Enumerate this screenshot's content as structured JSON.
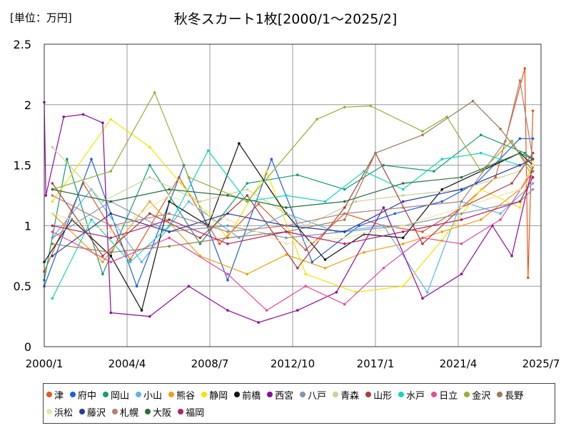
{
  "header": {
    "unit_label": "[単位：万円]",
    "title": "秋冬スカート1枚[2000/1～2025/2]"
  },
  "chart_data": {
    "type": "line",
    "title": "秋冬スカート1枚[2000/1～2025/2]",
    "ylabel": "[単位：万円]",
    "xlabel": "",
    "ylim": [
      0,
      2.5
    ],
    "yticks": [
      "0",
      "0.5",
      "1",
      "1.5",
      "2",
      "2.5"
    ],
    "xticks": [
      "2000/1",
      "2004/4",
      "2008/7",
      "2012/10",
      "2017/1",
      "2021/4",
      "2025/7"
    ],
    "xlim": [
      "2000-01",
      "2025-07"
    ],
    "grid": true,
    "legend_position": "bottom",
    "series": [
      {
        "name": "津",
        "color": "#e8561a",
        "pts": [
          [
            "2000-01",
            0.62
          ],
          [
            "2002-01",
            1.35
          ],
          [
            "2004-06",
            0.72
          ],
          [
            "2006-12",
            1.4
          ],
          [
            "2009-01",
            0.85
          ],
          [
            "2011-01",
            1.18
          ],
          [
            "2013-06",
            0.8
          ],
          [
            "2015-06",
            1.1
          ],
          [
            "2017-06",
            1.0
          ],
          [
            "2019-06",
            0.95
          ],
          [
            "2021-06",
            1.15
          ],
          [
            "2023-03",
            1.4
          ],
          [
            "2024-09",
            2.3
          ],
          [
            "2024-11",
            0.57
          ],
          [
            "2025-02",
            1.95
          ]
        ]
      },
      {
        "name": "府中",
        "color": "#1f5fdc",
        "pts": [
          [
            "2000-01",
            0.5
          ],
          [
            "2002-06",
            1.55
          ],
          [
            "2004-10",
            0.5
          ],
          [
            "2007-03",
            1.5
          ],
          [
            "2009-06",
            0.55
          ],
          [
            "2011-09",
            1.55
          ],
          [
            "2013-10",
            0.7
          ],
          [
            "2016-03",
            1.0
          ],
          [
            "2018-01",
            1.1
          ],
          [
            "2020-06",
            1.2
          ],
          [
            "2022-03",
            1.35
          ],
          [
            "2024-06",
            1.72
          ],
          [
            "2025-02",
            1.72
          ]
        ]
      },
      {
        "name": "岡山",
        "color": "#179c6d",
        "pts": [
          [
            "2000-01",
            0.55
          ],
          [
            "2001-03",
            1.55
          ],
          [
            "2003-01",
            0.6
          ],
          [
            "2005-06",
            1.5
          ],
          [
            "2008-01",
            0.85
          ],
          [
            "2010-06",
            1.35
          ],
          [
            "2013-01",
            1.42
          ],
          [
            "2015-06",
            1.3
          ],
          [
            "2017-06",
            1.5
          ],
          [
            "2020-01",
            1.45
          ],
          [
            "2022-06",
            1.75
          ],
          [
            "2024-09",
            1.6
          ],
          [
            "2025-02",
            1.55
          ]
        ]
      },
      {
        "name": "小山",
        "color": "#5cb4f0",
        "pts": [
          [
            "2000-06",
            0.9
          ],
          [
            "2002-06",
            1.3
          ],
          [
            "2005-01",
            0.7
          ],
          [
            "2007-06",
            1.2
          ],
          [
            "2010-01",
            0.9
          ],
          [
            "2012-06",
            1.1
          ],
          [
            "2015-01",
            0.95
          ],
          [
            "2017-06",
            1.0
          ],
          [
            "2019-09",
            0.45
          ],
          [
            "2021-06",
            1.2
          ],
          [
            "2023-06",
            1.1
          ],
          [
            "2025-02",
            1.35
          ]
        ]
      },
      {
        "name": "熊谷",
        "color": "#f0a010",
        "pts": [
          [
            "2000-06",
            1.1
          ],
          [
            "2003-01",
            0.7
          ],
          [
            "2005-06",
            1.2
          ],
          [
            "2008-01",
            0.75
          ],
          [
            "2010-06",
            0.6
          ],
          [
            "2012-06",
            0.76
          ],
          [
            "2014-06",
            0.65
          ],
          [
            "2016-06",
            0.78
          ],
          [
            "2018-06",
            0.85
          ],
          [
            "2020-06",
            0.95
          ],
          [
            "2022-06",
            1.05
          ],
          [
            "2024-06",
            1.3
          ],
          [
            "2025-02",
            1.48
          ]
        ]
      },
      {
        "name": "静岡",
        "color": "#f5e400",
        "pts": [
          [
            "2000-06",
            1.2
          ],
          [
            "2003-06",
            1.88
          ],
          [
            "2005-06",
            1.65
          ],
          [
            "2007-01",
            1.35
          ],
          [
            "2009-06",
            0.9
          ],
          [
            "2011-06",
            1.45
          ],
          [
            "2013-06",
            0.6
          ],
          [
            "2016-01",
            0.45
          ],
          [
            "2018-06",
            0.5
          ],
          [
            "2020-06",
            0.88
          ],
          [
            "2022-06",
            1.3
          ],
          [
            "2024-06",
            1.15
          ],
          [
            "2025-02",
            1.55
          ]
        ]
      },
      {
        "name": "前橋",
        "color": "#111111",
        "pts": [
          [
            "2000-01",
            0.7
          ],
          [
            "2001-06",
            1.05
          ],
          [
            "2003-06",
            0.75
          ],
          [
            "2005-01",
            0.3
          ],
          [
            "2006-06",
            1.2
          ],
          [
            "2008-06",
            1.0
          ],
          [
            "2010-01",
            1.68
          ],
          [
            "2012-06",
            1.1
          ],
          [
            "2014-06",
            0.72
          ],
          [
            "2016-06",
            0.93
          ],
          [
            "2018-06",
            0.9
          ],
          [
            "2020-06",
            1.3
          ],
          [
            "2022-06",
            1.45
          ],
          [
            "2024-06",
            1.6
          ],
          [
            "2025-02",
            1.5
          ]
        ]
      },
      {
        "name": "西宮",
        "color": "#8c0aa0",
        "pts": [
          [
            "2000-01",
            2.02
          ],
          [
            "2000-02",
            1.25
          ],
          [
            "2001-01",
            1.9
          ],
          [
            "2002-01",
            1.92
          ],
          [
            "2003-01",
            1.85
          ],
          [
            "2003-06",
            0.28
          ],
          [
            "2005-06",
            0.25
          ],
          [
            "2007-06",
            0.5
          ],
          [
            "2009-06",
            0.3
          ],
          [
            "2011-01",
            0.2
          ],
          [
            "2013-01",
            0.3
          ],
          [
            "2015-01",
            0.45
          ],
          [
            "2017-06",
            1.15
          ],
          [
            "2019-06",
            0.4
          ],
          [
            "2021-06",
            0.6
          ],
          [
            "2023-01",
            1.0
          ],
          [
            "2024-01",
            0.75
          ],
          [
            "2025-02",
            1.5
          ]
        ]
      },
      {
        "name": "八戸",
        "color": "#7e95b0",
        "pts": [
          [
            "2000-06",
            0.9
          ],
          [
            "2003-06",
            1.2
          ],
          [
            "2006-06",
            0.95
          ],
          [
            "2009-06",
            1.0
          ],
          [
            "2012-06",
            0.9
          ],
          [
            "2015-06",
            0.95
          ],
          [
            "2018-06",
            1.0
          ],
          [
            "2021-06",
            1.1
          ],
          [
            "2024-06",
            1.2
          ],
          [
            "2025-02",
            1.3
          ]
        ]
      },
      {
        "name": "青森",
        "color": "#c9d39a",
        "pts": [
          [
            "2000-06",
            1.65
          ],
          [
            "2003-01",
            1.2
          ],
          [
            "2005-06",
            1.4
          ],
          [
            "2008-01",
            1.2
          ],
          [
            "2010-06",
            1.3
          ],
          [
            "2013-06",
            1.0
          ],
          [
            "2016-01",
            1.2
          ],
          [
            "2018-06",
            1.25
          ],
          [
            "2021-06",
            1.3
          ],
          [
            "2024-06",
            1.45
          ],
          [
            "2025-02",
            1.6
          ]
        ]
      },
      {
        "name": "山形",
        "color": "#b13a3a",
        "pts": [
          [
            "2000-06",
            1.35
          ],
          [
            "2003-01",
            0.75
          ],
          [
            "2005-06",
            1.1
          ],
          [
            "2008-01",
            0.9
          ],
          [
            "2010-06",
            1.25
          ],
          [
            "2013-01",
            0.65
          ],
          [
            "2015-06",
            1.15
          ],
          [
            "2017-01",
            1.6
          ],
          [
            "2019-06",
            0.85
          ],
          [
            "2021-06",
            1.15
          ],
          [
            "2024-01",
            1.35
          ],
          [
            "2025-02",
            1.6
          ]
        ]
      },
      {
        "name": "水戸",
        "color": "#15d5c0",
        "pts": [
          [
            "2000-06",
            0.4
          ],
          [
            "2002-06",
            1.05
          ],
          [
            "2004-06",
            0.7
          ],
          [
            "2006-06",
            1.0
          ],
          [
            "2008-06",
            1.62
          ],
          [
            "2010-06",
            1.2
          ],
          [
            "2012-06",
            1.25
          ],
          [
            "2014-06",
            1.2
          ],
          [
            "2016-06",
            1.45
          ],
          [
            "2018-06",
            1.3
          ],
          [
            "2020-06",
            1.55
          ],
          [
            "2022-06",
            1.6
          ],
          [
            "2024-06",
            1.5
          ]
        ]
      },
      {
        "name": "日立",
        "color": "#e84a9a",
        "pts": [
          [
            "2000-06",
            0.95
          ],
          [
            "2003-06",
            0.7
          ],
          [
            "2006-06",
            0.9
          ],
          [
            "2009-06",
            0.6
          ],
          [
            "2011-06",
            0.3
          ],
          [
            "2013-06",
            0.5
          ],
          [
            "2015-06",
            0.35
          ],
          [
            "2017-06",
            0.65
          ],
          [
            "2019-06",
            0.9
          ],
          [
            "2021-06",
            0.85
          ],
          [
            "2023-06",
            1.05
          ],
          [
            "2025-02",
            1.45
          ]
        ]
      },
      {
        "name": "金沢",
        "color": "#95b035",
        "pts": [
          [
            "2000-06",
            1.3
          ],
          [
            "2003-06",
            1.45
          ],
          [
            "2005-09",
            2.1
          ],
          [
            "2007-06",
            1.4
          ],
          [
            "2010-06",
            1.2
          ],
          [
            "2014-01",
            1.88
          ],
          [
            "2015-06",
            1.98
          ],
          [
            "2016-10",
            1.99
          ],
          [
            "2019-06",
            1.78
          ],
          [
            "2020-09",
            1.9
          ],
          [
            "2022-06",
            1.45
          ],
          [
            "2024-01",
            1.7
          ],
          [
            "2025-02",
            1.4
          ]
        ]
      },
      {
        "name": "長野",
        "color": "#9c7a52",
        "pts": [
          [
            "2000-06",
            0.85
          ],
          [
            "2003-06",
            0.78
          ],
          [
            "2006-06",
            0.83
          ],
          [
            "2009-06",
            0.9
          ],
          [
            "2012-06",
            0.95
          ],
          [
            "2015-06",
            1.05
          ],
          [
            "2017-01",
            1.6
          ],
          [
            "2019-06",
            1.75
          ],
          [
            "2022-01",
            2.03
          ],
          [
            "2023-06",
            1.8
          ],
          [
            "2025-02",
            1.45
          ]
        ]
      },
      {
        "name": "浜松",
        "color": "#ece6a8",
        "pts": [
          [
            "2000-06",
            1.1
          ],
          [
            "2003-06",
            0.95
          ],
          [
            "2006-06",
            1.25
          ],
          [
            "2009-06",
            1.05
          ],
          [
            "2012-06",
            0.85
          ],
          [
            "2015-06",
            0.9
          ],
          [
            "2018-06",
            1.0
          ],
          [
            "2021-06",
            1.15
          ],
          [
            "2024-06",
            1.3
          ],
          [
            "2025-02",
            1.5
          ]
        ]
      },
      {
        "name": "藤沢",
        "color": "#253a9a",
        "pts": [
          [
            "2000-06",
            0.75
          ],
          [
            "2003-06",
            1.1
          ],
          [
            "2006-06",
            0.95
          ],
          [
            "2009-06",
            1.1
          ],
          [
            "2012-06",
            1.0
          ],
          [
            "2015-06",
            0.95
          ],
          [
            "2018-06",
            1.2
          ],
          [
            "2021-06",
            1.3
          ],
          [
            "2024-06",
            1.5
          ],
          [
            "2025-02",
            1.55
          ]
        ]
      },
      {
        "name": "札幌",
        "color": "#b07e78",
        "pts": [
          [
            "2000-06",
            1.25
          ],
          [
            "2003-06",
            1.0
          ],
          [
            "2006-06",
            1.1
          ],
          [
            "2009-06",
            0.95
          ],
          [
            "2012-06",
            1.0
          ],
          [
            "2015-06",
            1.1
          ],
          [
            "2018-06",
            1.15
          ],
          [
            "2021-06",
            1.2
          ],
          [
            "2023-09",
            1.7
          ],
          [
            "2024-06",
            2.2
          ],
          [
            "2025-02",
            1.55
          ]
        ]
      },
      {
        "name": "大阪",
        "color": "#2c6e3c",
        "pts": [
          [
            "2000-06",
            1.3
          ],
          [
            "2003-06",
            1.2
          ],
          [
            "2006-06",
            1.3
          ],
          [
            "2009-06",
            1.25
          ],
          [
            "2012-06",
            1.15
          ],
          [
            "2015-06",
            1.2
          ],
          [
            "2018-06",
            1.35
          ],
          [
            "2021-06",
            1.4
          ],
          [
            "2024-06",
            1.6
          ],
          [
            "2025-02",
            1.55
          ]
        ]
      },
      {
        "name": "福岡",
        "color": "#b3206e",
        "pts": [
          [
            "2000-06",
            1.0
          ],
          [
            "2003-06",
            0.9
          ],
          [
            "2006-06",
            1.05
          ],
          [
            "2009-06",
            0.85
          ],
          [
            "2012-06",
            0.95
          ],
          [
            "2015-06",
            0.85
          ],
          [
            "2018-06",
            0.95
          ],
          [
            "2021-06",
            1.05
          ],
          [
            "2024-06",
            1.2
          ],
          [
            "2025-02",
            1.4
          ]
        ]
      }
    ]
  }
}
